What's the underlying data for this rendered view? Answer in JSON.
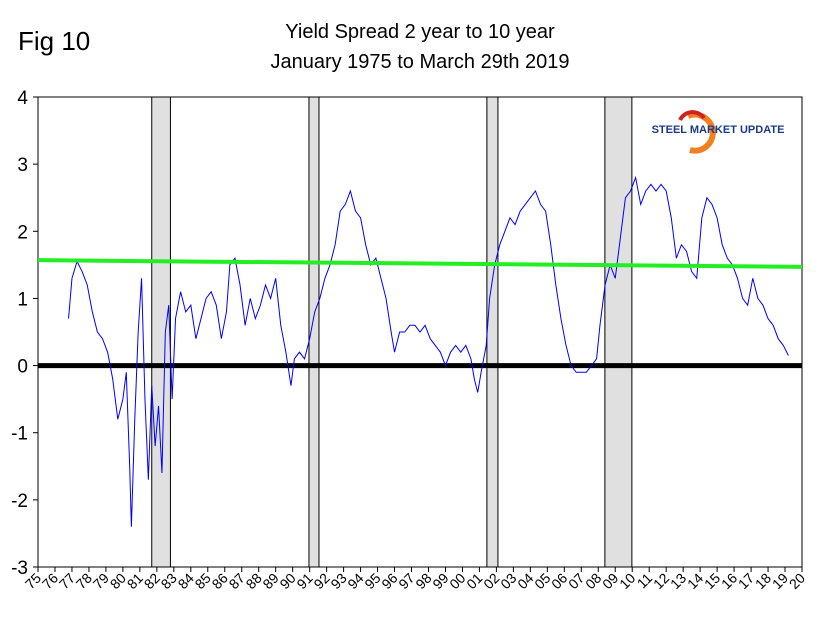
{
  "chart_data": {
    "type": "line",
    "figure_label": "Fig 10",
    "title": "Yield Spread 2 year to 10 year",
    "subtitle": "January 1975 to March 29th 2019",
    "logo_text": "STEEL MARKET UPDATE",
    "color": "#0000ff",
    "xlim": [
      1975,
      2020
    ],
    "ylim": [
      -3,
      4
    ],
    "yticks": [
      -3,
      -2,
      -1,
      0,
      1,
      2,
      3,
      4
    ],
    "xticks": [
      {
        "value": 1975,
        "label": "75"
      },
      {
        "value": 1976,
        "label": "76"
      },
      {
        "value": 1977,
        "label": "77"
      },
      {
        "value": 1978,
        "label": "78"
      },
      {
        "value": 1979,
        "label": "79"
      },
      {
        "value": 1980,
        "label": "80"
      },
      {
        "value": 1981,
        "label": "81"
      },
      {
        "value": 1982,
        "label": "82"
      },
      {
        "value": 1983,
        "label": "83"
      },
      {
        "value": 1984,
        "label": "84"
      },
      {
        "value": 1985,
        "label": "85"
      },
      {
        "value": 1986,
        "label": "86"
      },
      {
        "value": 1987,
        "label": "87"
      },
      {
        "value": 1988,
        "label": "88"
      },
      {
        "value": 1989,
        "label": "89"
      },
      {
        "value": 1990,
        "label": "90"
      },
      {
        "value": 1991,
        "label": "91"
      },
      {
        "value": 1992,
        "label": "92"
      },
      {
        "value": 1993,
        "label": "93"
      },
      {
        "value": 1994,
        "label": "94"
      },
      {
        "value": 1995,
        "label": "95"
      },
      {
        "value": 1996,
        "label": "96"
      },
      {
        "value": 1997,
        "label": "97"
      },
      {
        "value": 1998,
        "label": "98"
      },
      {
        "value": 1999,
        "label": "99"
      },
      {
        "value": 2000,
        "label": "00"
      },
      {
        "value": 2001,
        "label": "01"
      },
      {
        "value": 2002,
        "label": "02"
      },
      {
        "value": 2003,
        "label": "03"
      },
      {
        "value": 2004,
        "label": "04"
      },
      {
        "value": 2005,
        "label": "05"
      },
      {
        "value": 2006,
        "label": "06"
      },
      {
        "value": 2007,
        "label": "07"
      },
      {
        "value": 2008,
        "label": "08"
      },
      {
        "value": 2009,
        "label": "09"
      },
      {
        "value": 2010,
        "label": "10"
      },
      {
        "value": 2011,
        "label": "11"
      },
      {
        "value": 2012,
        "label": "12"
      },
      {
        "value": 2013,
        "label": "13"
      },
      {
        "value": 2014,
        "label": "14"
      },
      {
        "value": 2015,
        "label": "15"
      },
      {
        "value": 2016,
        "label": "16"
      },
      {
        "value": 2017,
        "label": "17"
      },
      {
        "value": 2018,
        "label": "18"
      },
      {
        "value": 2019,
        "label": "19"
      },
      {
        "value": 2020,
        "label": "20"
      }
    ],
    "recessions": [
      [
        1981.7,
        1982.8
      ],
      [
        1990.96,
        1991.55
      ],
      [
        2001.44,
        2002.09
      ],
      [
        2008.39,
        2009.98
      ]
    ],
    "recession_color": "#e0e0e0",
    "trend_line": {
      "x": [
        1975,
        2020
      ],
      "values": [
        1.57,
        1.47
      ],
      "color": "#22ee22"
    },
    "zero_line": {
      "value": 0,
      "color": "#000000"
    },
    "x": [
      1976.8,
      1977.0,
      1977.3,
      1977.6,
      1977.9,
      1978.2,
      1978.5,
      1978.8,
      1979.1,
      1979.4,
      1979.7,
      1980.0,
      1980.2,
      1980.4,
      1980.5,
      1980.7,
      1980.9,
      1981.1,
      1981.3,
      1981.5,
      1981.7,
      1981.9,
      1982.1,
      1982.3,
      1982.5,
      1982.7,
      1982.9,
      1983.1,
      1983.4,
      1983.7,
      1984.0,
      1984.3,
      1984.6,
      1984.9,
      1985.2,
      1985.5,
      1985.8,
      1986.1,
      1986.3,
      1986.6,
      1986.9,
      1987.2,
      1987.5,
      1987.8,
      1988.1,
      1988.4,
      1988.7,
      1989.0,
      1989.3,
      1989.6,
      1989.9,
      1990.1,
      1990.4,
      1990.7,
      1991.0,
      1991.3,
      1991.6,
      1991.9,
      1992.2,
      1992.5,
      1992.8,
      1993.1,
      1993.4,
      1993.7,
      1994.0,
      1994.3,
      1994.6,
      1994.9,
      1995.2,
      1995.5,
      1995.8,
      1996.0,
      1996.3,
      1996.6,
      1996.9,
      1997.2,
      1997.5,
      1997.8,
      1998.1,
      1998.4,
      1998.7,
      1999.0,
      1999.3,
      1999.6,
      1999.9,
      2000.2,
      2000.5,
      2000.7,
      2000.9,
      2001.1,
      2001.4,
      2001.6,
      2001.9,
      2002.2,
      2002.5,
      2002.8,
      2003.1,
      2003.4,
      2003.7,
      2004.0,
      2004.3,
      2004.6,
      2004.9,
      2005.2,
      2005.5,
      2005.8,
      2006.1,
      2006.4,
      2006.7,
      2007.0,
      2007.3,
      2007.6,
      2007.9,
      2008.1,
      2008.4,
      2008.7,
      2009.0,
      2009.3,
      2009.6,
      2009.9,
      2010.2,
      2010.5,
      2010.8,
      2011.1,
      2011.4,
      2011.7,
      2012.0,
      2012.3,
      2012.6,
      2012.9,
      2013.2,
      2013.5,
      2013.8,
      2014.1,
      2014.4,
      2014.7,
      2015.0,
      2015.3,
      2015.6,
      2015.9,
      2016.2,
      2016.5,
      2016.8,
      2017.1,
      2017.4,
      2017.7,
      2018.0,
      2018.3,
      2018.6,
      2018.9,
      2019.2
    ],
    "values": [
      0.7,
      1.3,
      1.55,
      1.4,
      1.2,
      0.8,
      0.5,
      0.4,
      0.2,
      -0.2,
      -0.8,
      -0.5,
      -0.1,
      -1.5,
      -2.4,
      -0.8,
      0.5,
      1.3,
      -0.5,
      -1.7,
      -0.3,
      -1.2,
      -0.6,
      -1.6,
      0.5,
      0.9,
      -0.5,
      0.7,
      1.1,
      0.8,
      0.9,
      0.4,
      0.7,
      1.0,
      1.1,
      0.9,
      0.4,
      0.8,
      1.5,
      1.6,
      1.2,
      0.6,
      1.0,
      0.7,
      0.9,
      1.2,
      1.0,
      1.3,
      0.6,
      0.2,
      -0.3,
      0.1,
      0.2,
      0.1,
      0.4,
      0.8,
      1.0,
      1.3,
      1.5,
      1.8,
      2.3,
      2.4,
      2.6,
      2.3,
      2.2,
      1.8,
      1.5,
      1.6,
      1.3,
      1.0,
      0.5,
      0.2,
      0.5,
      0.5,
      0.6,
      0.6,
      0.5,
      0.6,
      0.4,
      0.3,
      0.2,
      0.0,
      0.2,
      0.3,
      0.2,
      0.3,
      0.1,
      -0.2,
      -0.4,
      -0.1,
      0.3,
      1.0,
      1.5,
      1.8,
      2.0,
      2.2,
      2.1,
      2.3,
      2.4,
      2.5,
      2.6,
      2.4,
      2.3,
      1.8,
      1.2,
      0.7,
      0.3,
      0.0,
      -0.1,
      -0.1,
      -0.1,
      0.0,
      0.1,
      0.6,
      1.2,
      1.5,
      1.3,
      1.9,
      2.5,
      2.6,
      2.8,
      2.4,
      2.6,
      2.7,
      2.6,
      2.7,
      2.6,
      2.2,
      1.6,
      1.8,
      1.7,
      1.4,
      1.3,
      2.2,
      2.5,
      2.4,
      2.2,
      1.8,
      1.6,
      1.5,
      1.3,
      1.0,
      0.9,
      1.3,
      1.0,
      0.9,
      0.7,
      0.6,
      0.4,
      0.3,
      0.15
    ]
  }
}
